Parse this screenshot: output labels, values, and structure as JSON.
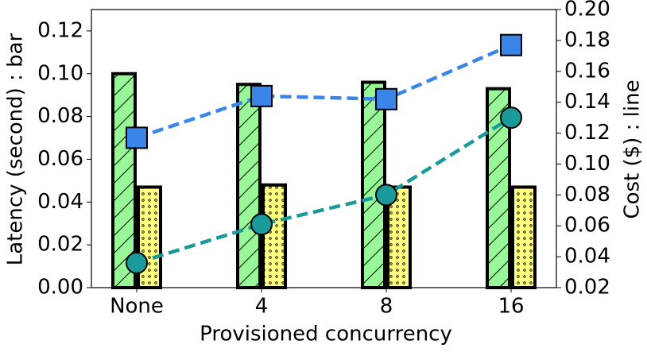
{
  "chart_data": {
    "type": "bar",
    "categories": [
      "None",
      "4",
      "8",
      "16"
    ],
    "xlabel": "Provisioned concurrency",
    "ylabel": "Latency (second) : bar",
    "y2label": "Cost ($) : line",
    "ylim": [
      0,
      0.13
    ],
    "yticks": [
      {
        "value": 0,
        "label": "0.00"
      },
      {
        "value": 0.02,
        "label": "0.02"
      },
      {
        "value": 0.04,
        "label": "0.04"
      },
      {
        "value": 0.06,
        "label": "0.06"
      },
      {
        "value": 0.08,
        "label": "0.08"
      },
      {
        "value": 0.1,
        "label": "0.10"
      },
      {
        "value": 0.12,
        "label": "0.12"
      }
    ],
    "y2lim": [
      0.02,
      0.2
    ],
    "y2ticks": [
      {
        "value": 0.02,
        "label": "0.02"
      },
      {
        "value": 0.04,
        "label": "0.04"
      },
      {
        "value": 0.06,
        "label": "0.06"
      },
      {
        "value": 0.08,
        "label": "0.08"
      },
      {
        "value": 0.1,
        "label": "0.10"
      },
      {
        "value": 0.12,
        "label": "0.12"
      },
      {
        "value": 0.14,
        "label": "0.14"
      },
      {
        "value": 0.16,
        "label": "0.16"
      },
      {
        "value": 0.18,
        "label": "0.18"
      },
      {
        "value": 0.2,
        "label": "0.20"
      }
    ],
    "series": [
      {
        "type": "bar",
        "color": "#98f898",
        "hatch": "/",
        "values": [
          0.1,
          0.095,
          0.096,
          0.093
        ]
      },
      {
        "type": "bar",
        "color": "#ffff80",
        "hatch": "o",
        "values": [
          0.047,
          0.048,
          0.047,
          0.047
        ]
      },
      {
        "type": "line",
        "axis": "y2",
        "color": "#3a86e8",
        "marker": "square",
        "values": [
          0.117,
          0.144,
          0.142,
          0.177
        ]
      },
      {
        "type": "line",
        "axis": "y2",
        "color": "#1a9a9a",
        "marker": "circle",
        "values": [
          0.036,
          0.061,
          0.08,
          0.13
        ]
      }
    ]
  }
}
